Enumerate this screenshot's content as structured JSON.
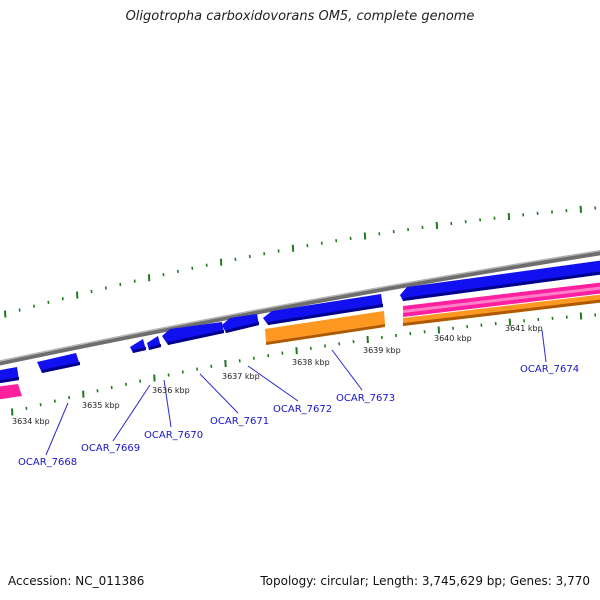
{
  "title": "Oligotropha carboxidovorans OM5, complete genome",
  "footer": {
    "accession": "Accession: NC_011386",
    "summary": "Topology: circular; Length: 3,745,629 bp; Genes: 3,770"
  },
  "colors": {
    "cds": "#1010f0",
    "cds_dark": "#00008a",
    "orange": "#ff9820",
    "orange_dark": "#b05a00",
    "pink": "#ff20a0",
    "backbone": "#888888",
    "tick": "#1e7a1e",
    "label": "#1515c8"
  },
  "ruler_labels": [
    "3634 kbp",
    "3635 kbp",
    "3636 kbp",
    "3637 kbp",
    "3638 kbp",
    "3639 kbp",
    "3640 kbp",
    "3641 kbp"
  ],
  "gene_labels": [
    "OCAR_7668",
    "OCAR_7669",
    "OCAR_7670",
    "OCAR_7671",
    "OCAR_7672",
    "OCAR_7673",
    "OCAR_7674"
  ]
}
